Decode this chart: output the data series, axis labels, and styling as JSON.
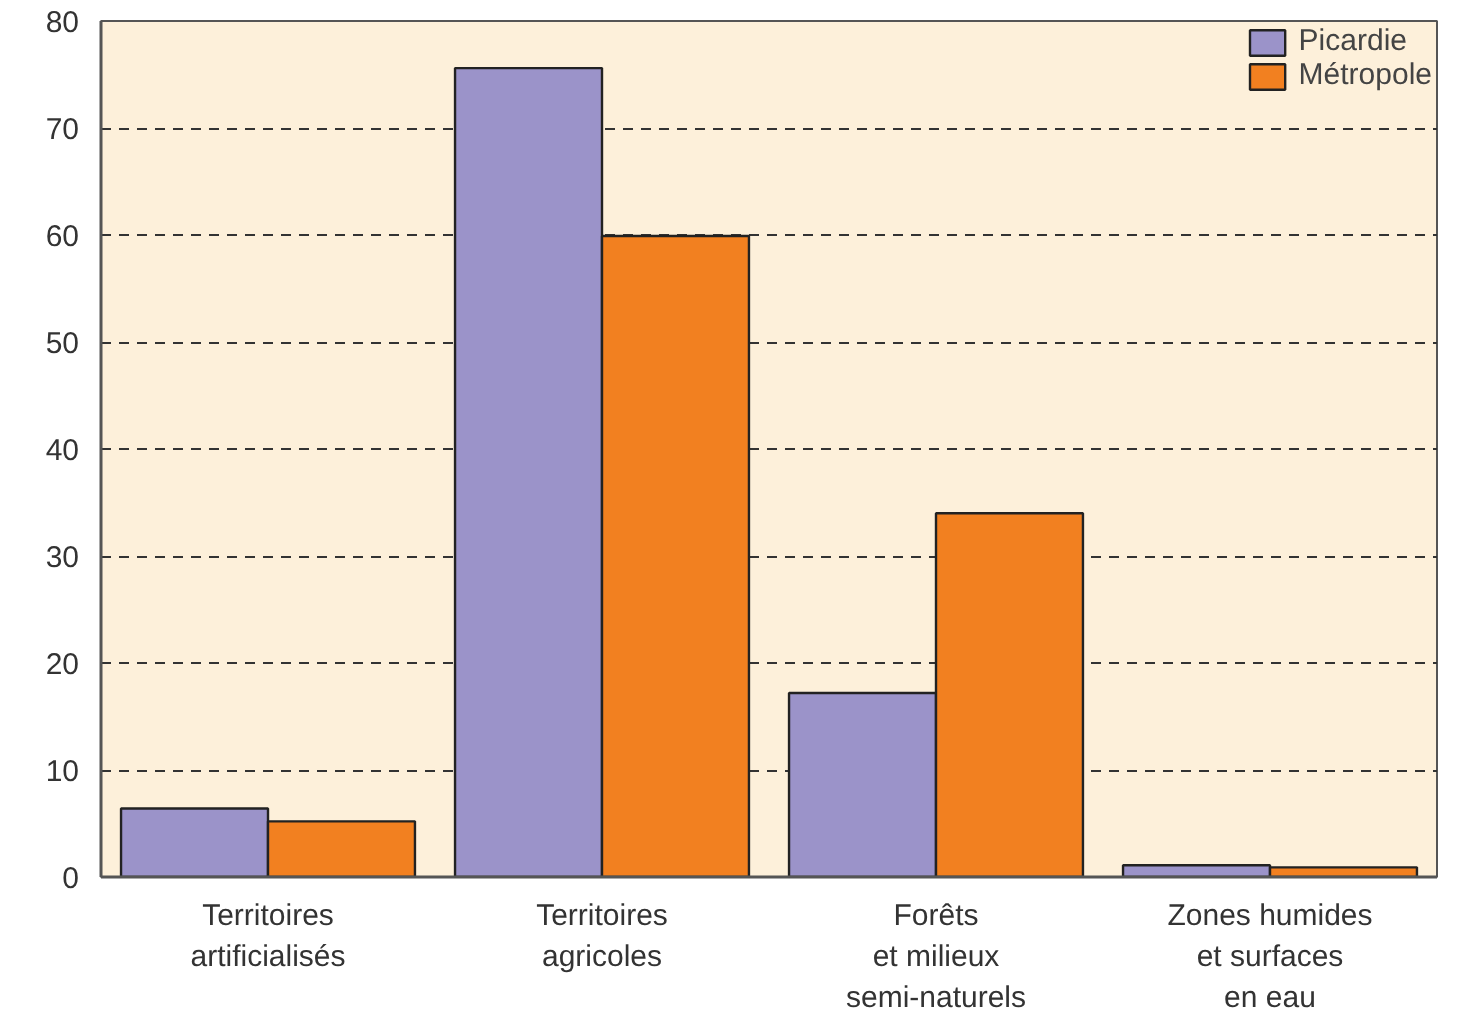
{
  "chart_data": {
    "type": "bar",
    "categories": [
      "Territoires\nartificialisés",
      "Territoires\nagricoles",
      "Forêts\net milieux\nsemi-naturels",
      "Zones humides\net surfaces\nen eau"
    ],
    "series": [
      {
        "name": "Picardie",
        "color": "#9b93c9",
        "values": [
          6.4,
          75.6,
          17.2,
          1.1
        ]
      },
      {
        "name": "Métropole",
        "color": "#f28020",
        "values": [
          5.2,
          59.9,
          34.0,
          0.9
        ]
      }
    ],
    "ylim": [
      0,
      80
    ],
    "yticks": [
      0,
      10,
      20,
      30,
      40,
      50,
      60,
      70,
      80
    ],
    "grid": "y",
    "legend": "top right"
  }
}
